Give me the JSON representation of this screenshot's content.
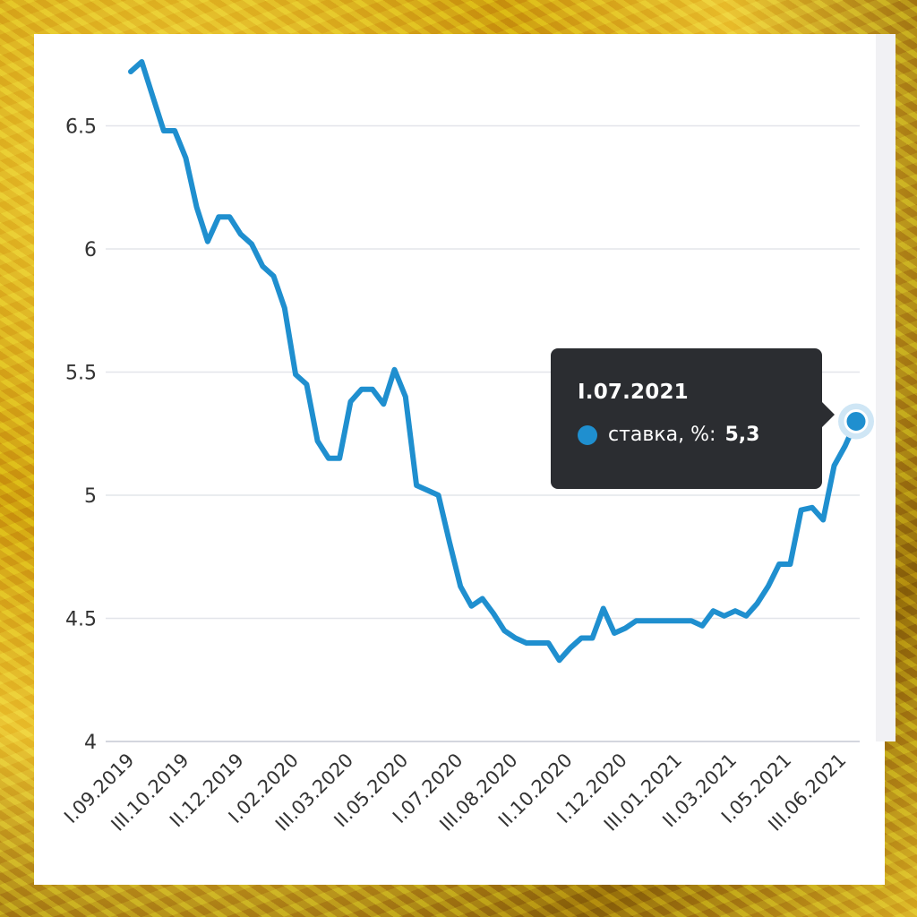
{
  "chart_data": {
    "type": "line",
    "ylim": [
      4,
      6.8
    ],
    "yticks": [
      4,
      4.5,
      5,
      5.5,
      6,
      6.5
    ],
    "ytick_labels": [
      "4",
      "4.5",
      "5",
      "5.5",
      "6",
      "6.5"
    ],
    "xtick_labels": [
      "I.09.2019",
      "III.10.2019",
      "II.12.2019",
      "I.02.2020",
      "III.03.2020",
      "II.05.2020",
      "I.07.2020",
      "III.08.2020",
      "II.10.2020",
      "I.12.2020",
      "III.01.2021",
      "II.03.2021",
      "I.05.2021",
      "III.06.2021"
    ],
    "series": [
      {
        "name": "ставка, %",
        "color": "#1f8fcf",
        "values": [
          6.72,
          6.76,
          6.62,
          6.48,
          6.48,
          6.37,
          6.17,
          6.03,
          6.13,
          6.13,
          6.06,
          6.02,
          5.93,
          5.89,
          5.76,
          5.49,
          5.45,
          5.22,
          5.15,
          5.15,
          5.38,
          5.43,
          5.43,
          5.37,
          5.51,
          5.4,
          5.04,
          5.02,
          5.0,
          4.81,
          4.63,
          4.55,
          4.58,
          4.52,
          4.45,
          4.42,
          4.4,
          4.4,
          4.4,
          4.33,
          4.38,
          4.42,
          4.42,
          4.54,
          4.44,
          4.46,
          4.49,
          4.49,
          4.49,
          4.49,
          4.49,
          4.49,
          4.47,
          4.53,
          4.51,
          4.53,
          4.51,
          4.56,
          4.63,
          4.72,
          4.72,
          4.94,
          4.95,
          4.9,
          5.12,
          5.2,
          5.3
        ]
      }
    ],
    "tooltip": {
      "title": "I.07.2021",
      "series_label": "ставка, %:",
      "value": "5,3"
    }
  }
}
